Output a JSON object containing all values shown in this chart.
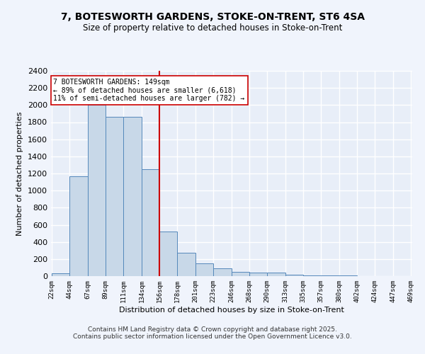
{
  "title": "7, BOTESWORTH GARDENS, STOKE-ON-TRENT, ST6 4SA",
  "subtitle": "Size of property relative to detached houses in Stoke-on-Trent",
  "xlabel": "Distribution of detached houses by size in Stoke-on-Trent",
  "ylabel": "Number of detached properties",
  "bins": [
    22,
    44,
    67,
    89,
    111,
    134,
    156,
    178,
    201,
    223,
    246,
    268,
    290,
    313,
    335,
    357,
    380,
    402,
    424,
    447,
    469
  ],
  "counts": [
    30,
    1170,
    2000,
    1860,
    1860,
    1250,
    520,
    270,
    150,
    90,
    50,
    45,
    40,
    20,
    5,
    5,
    5,
    3,
    2,
    2
  ],
  "bar_color": "#c8d8e8",
  "bar_edge_color": "#5588bb",
  "vline_x": 156,
  "vline_color": "#cc0000",
  "annotation_text": "7 BOTESWORTH GARDENS: 149sqm\n← 89% of detached houses are smaller (6,618)\n11% of semi-detached houses are larger (782) →",
  "annotation_box_color": "#ffffff",
  "annotation_box_edge": "#cc0000",
  "ylim": [
    0,
    2400
  ],
  "yticks": [
    0,
    200,
    400,
    600,
    800,
    1000,
    1200,
    1400,
    1600,
    1800,
    2000,
    2200,
    2400
  ],
  "bg_color": "#e8eef8",
  "grid_color": "#ffffff",
  "fig_bg_color": "#f0f4fc",
  "footer_line1": "Contains HM Land Registry data © Crown copyright and database right 2025.",
  "footer_line2": "Contains public sector information licensed under the Open Government Licence v3.0."
}
